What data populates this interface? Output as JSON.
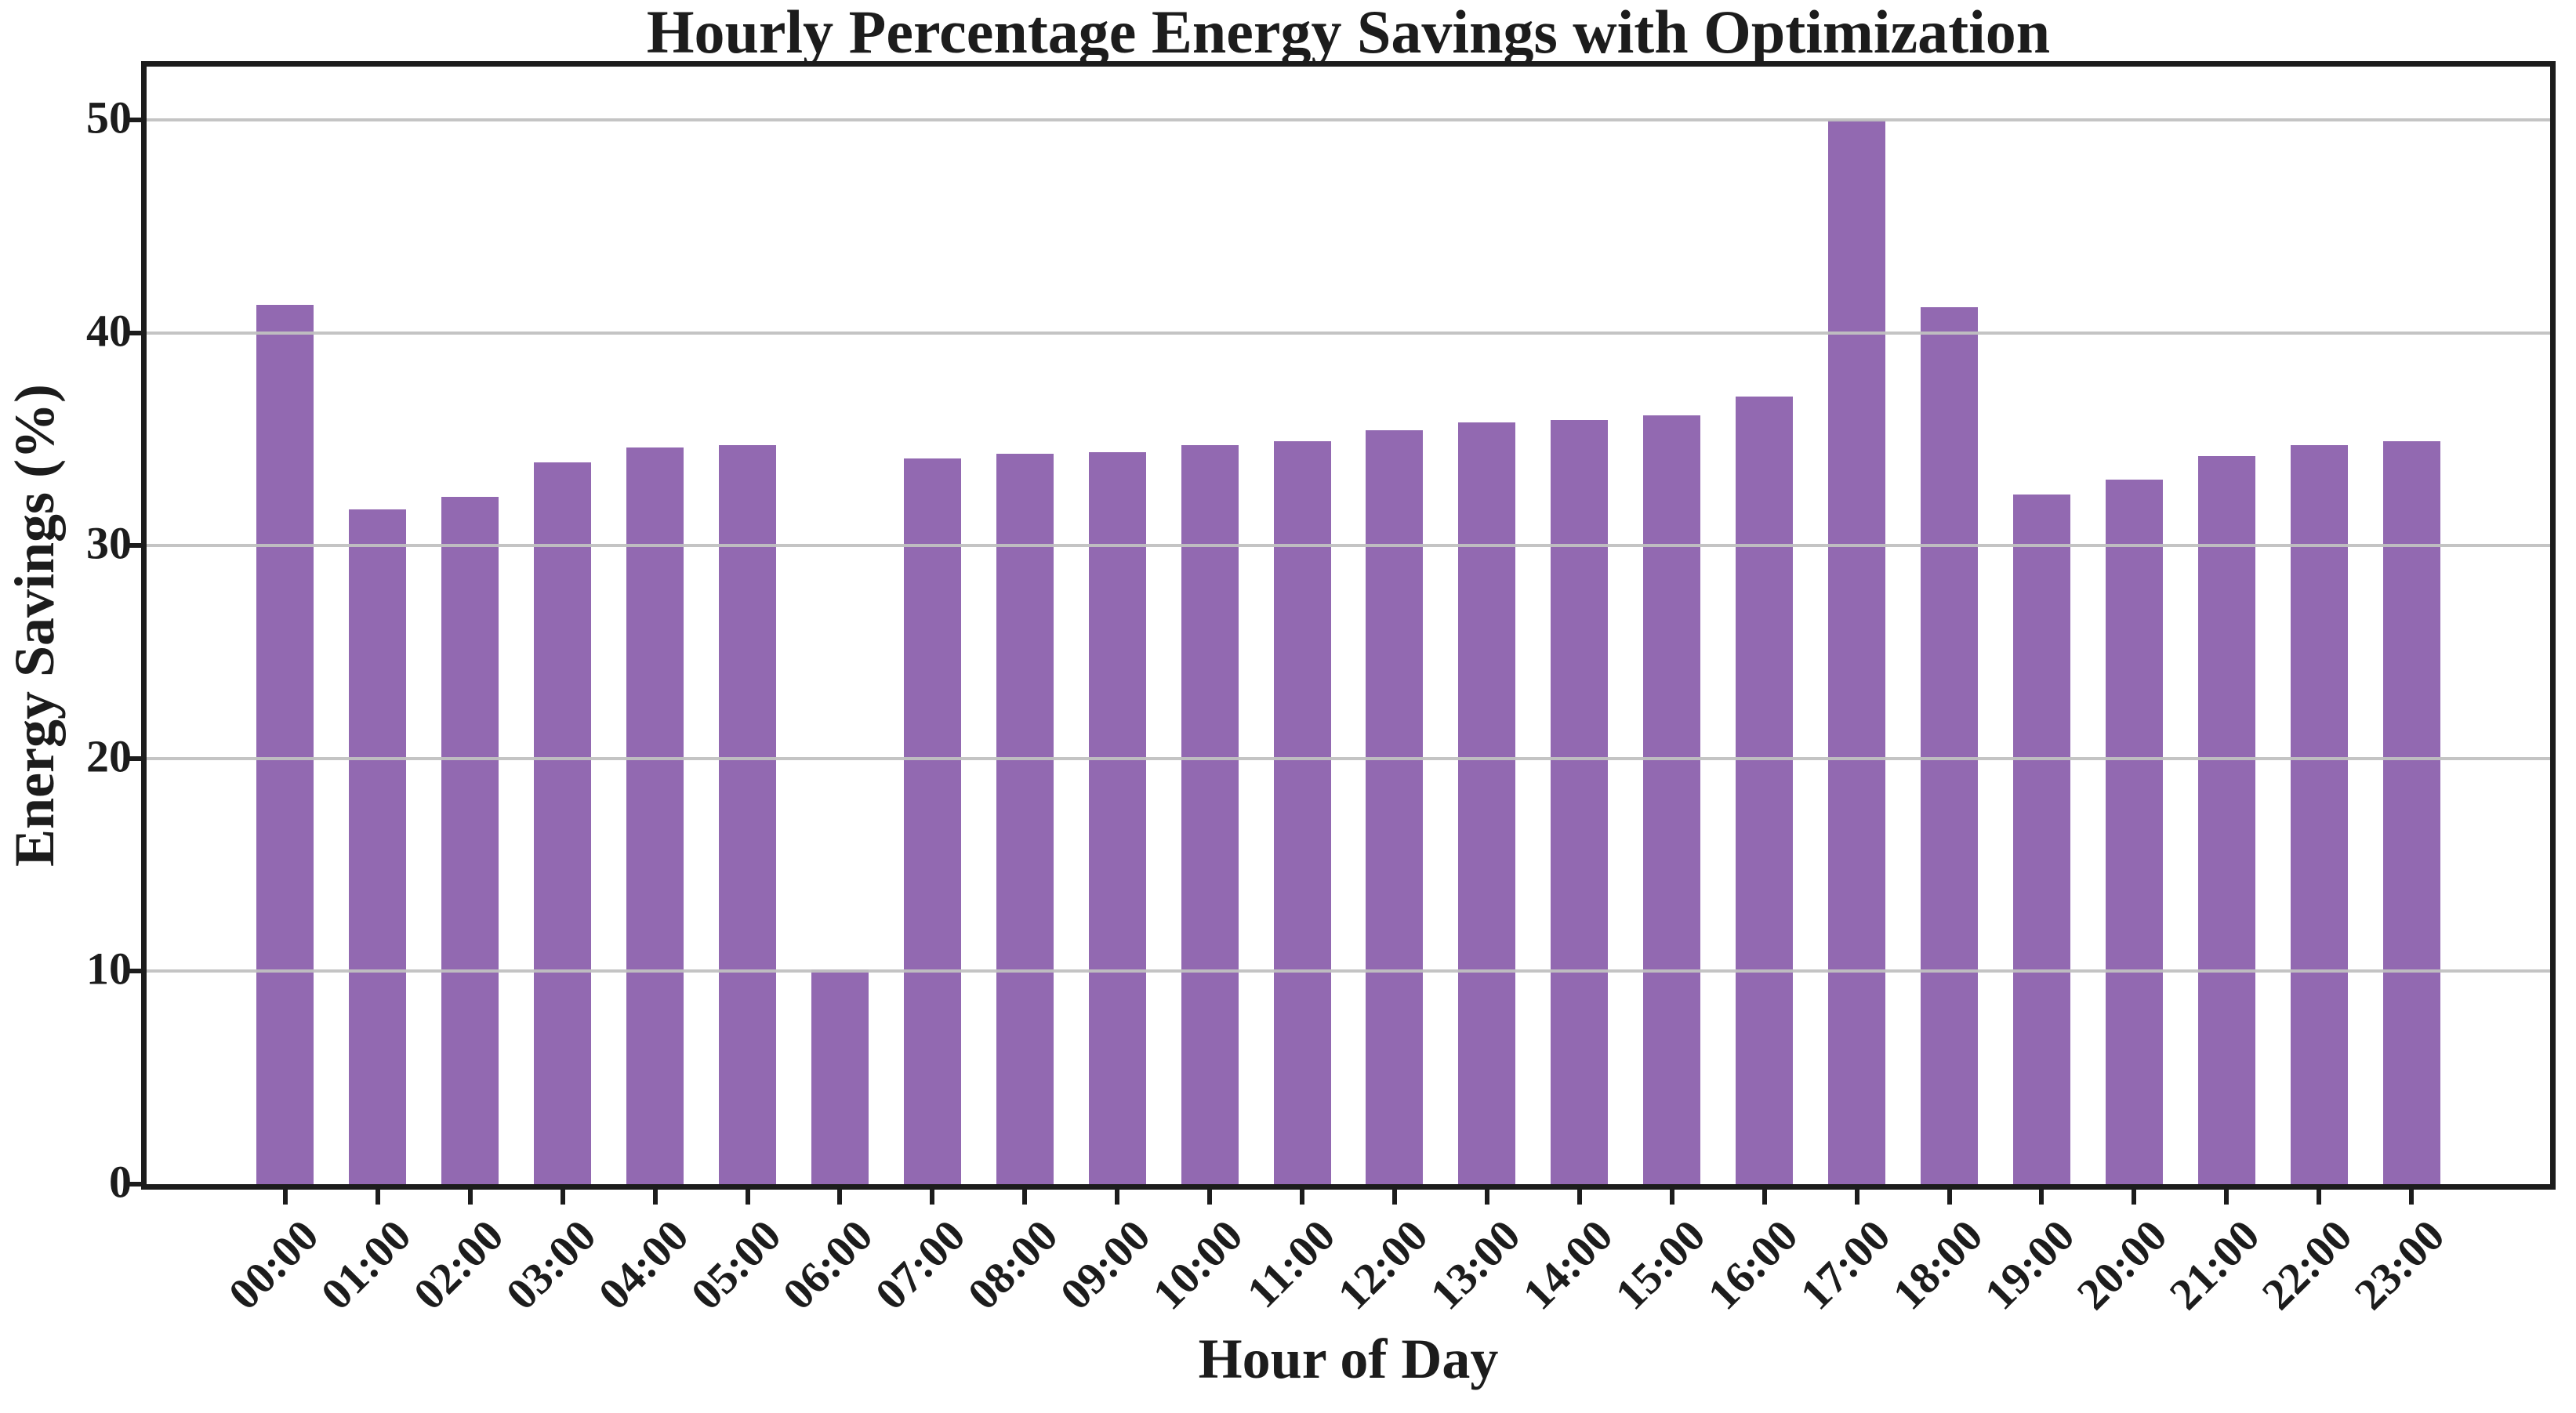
{
  "page": {
    "background": "#ffffff"
  },
  "chart_data": {
    "type": "bar",
    "title": "Hourly Percentage Energy Savings with Optimization",
    "xlabel": "Hour of Day",
    "ylabel": "Energy Savings (%)",
    "categories": [
      "00:00",
      "01:00",
      "02:00",
      "03:00",
      "04:00",
      "05:00",
      "06:00",
      "07:00",
      "08:00",
      "09:00",
      "10:00",
      "11:00",
      "12:00",
      "13:00",
      "14:00",
      "15:00",
      "16:00",
      "17:00",
      "18:00",
      "19:00",
      "20:00",
      "21:00",
      "22:00",
      "23:00"
    ],
    "values": [
      41.3,
      31.7,
      32.3,
      33.9,
      34.6,
      34.7,
      10.1,
      34.1,
      34.3,
      34.4,
      34.7,
      34.9,
      35.4,
      35.8,
      35.9,
      36.1,
      37.0,
      50.0,
      41.2,
      32.4,
      33.1,
      34.2,
      34.7,
      34.9
    ],
    "ylim": [
      0,
      52.5
    ],
    "yticks": [
      0,
      10,
      20,
      30,
      40,
      50
    ],
    "grid": "horizontal",
    "grid_above_bars": true,
    "legend_position": "none",
    "xtick_rotation_deg": 45,
    "bar_color": "#9269b1",
    "grid_color": "#c1c1c1",
    "axis_color": "#1c1c1c",
    "text_color": "#1c1c1c",
    "bar_width_fraction": 0.62
  }
}
